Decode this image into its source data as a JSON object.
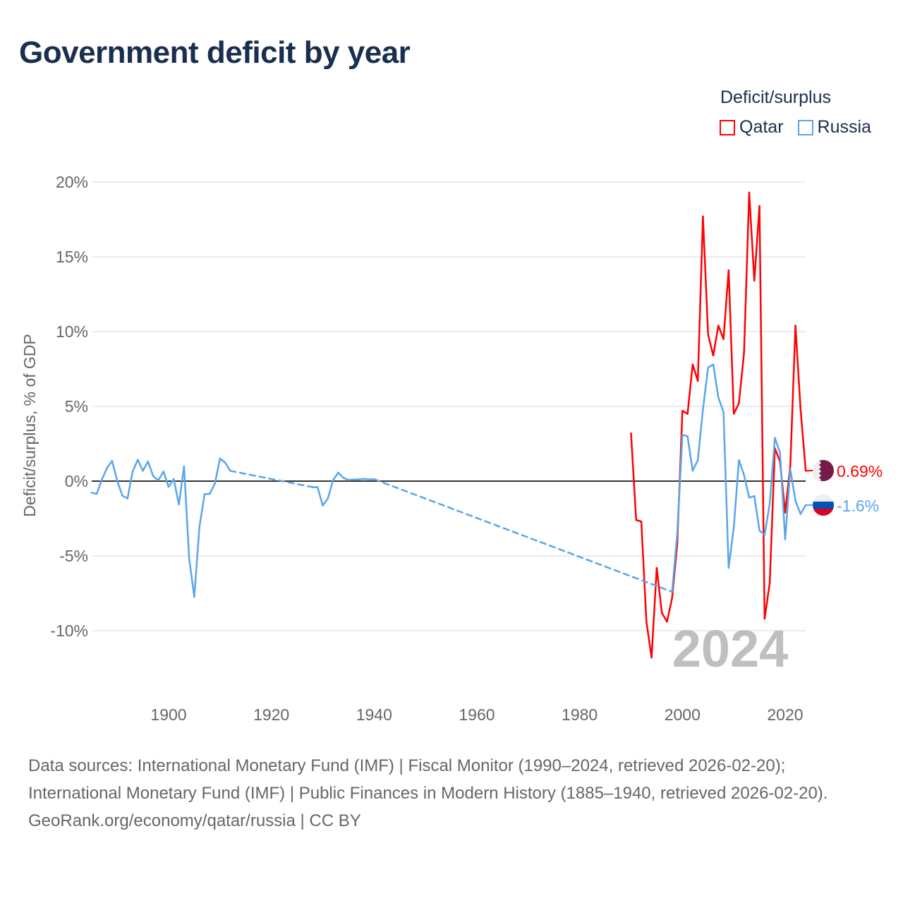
{
  "title": "Government deficit by year",
  "legend": {
    "title": "Deficit/surplus",
    "items": [
      {
        "label": "Qatar",
        "color": "#ff0000"
      },
      {
        "label": "Russia",
        "color": "#5aa5ec"
      }
    ]
  },
  "footer": {
    "sources": "Data sources: International Monetary Fund (IMF) | Fiscal Monitor (1990–2024, retrieved 2026-02-20); International Monetary Fund (IMF) | Public Finances in Modern History (1885–1940, retrieved 2026-02-20).",
    "credit": "GeoRank.org/economy/qatar/russia | CC BY"
  },
  "chart_data": {
    "type": "line",
    "title": "Government deficit by year",
    "ylabel": "Deficit/surplus, % of GDP",
    "xlabel": "",
    "xlim": [
      1885,
      2024
    ],
    "ylim": [
      -13,
      21
    ],
    "yticks": [
      20,
      15,
      10,
      5,
      0,
      -5,
      -10
    ],
    "ytick_labels": [
      "20%",
      "15%",
      "10%",
      "5%",
      "0%",
      "-5%",
      "-10%"
    ],
    "xticks": [
      1900,
      1920,
      1940,
      1960,
      1980,
      2000,
      2020
    ],
    "xtick_labels": [
      "1900",
      "1920",
      "1940",
      "1960",
      "1980",
      "2000",
      "2020"
    ],
    "year_label": "2024",
    "grid": true,
    "legend_position": "top-right",
    "series": [
      {
        "name": "Qatar",
        "color": "#ff0000",
        "end_label": "0.69%",
        "x": [
          1990,
          1991,
          1992,
          1993,
          1994,
          1995,
          1996,
          1997,
          1998,
          1999,
          2000,
          2001,
          2002,
          2003,
          2004,
          2005,
          2006,
          2007,
          2008,
          2009,
          2010,
          2011,
          2012,
          2013,
          2014,
          2015,
          2016,
          2017,
          2018,
          2019,
          2020,
          2021,
          2022,
          2023,
          2024
        ],
        "y": [
          3.2,
          -2.6,
          -2.7,
          -9.4,
          -11.8,
          -5.8,
          -8.8,
          -9.4,
          -7.8,
          -4.2,
          4.7,
          4.5,
          7.8,
          6.7,
          17.7,
          9.8,
          8.4,
          10.4,
          9.5,
          14.1,
          4.5,
          5.2,
          8.6,
          19.3,
          13.4,
          18.4,
          -9.2,
          -6.8,
          2.2,
          1.3,
          -2.1,
          1.0,
          10.4,
          4.8,
          0.69
        ]
      },
      {
        "name": "Russia",
        "color": "#5aa5ec",
        "end_label": "-1.6%",
        "x": [
          1885,
          1886,
          1887,
          1888,
          1889,
          1890,
          1891,
          1892,
          1893,
          1894,
          1895,
          1896,
          1897,
          1898,
          1899,
          1900,
          1901,
          1902,
          1903,
          1904,
          1905,
          1906,
          1907,
          1908,
          1909,
          1910,
          1911,
          1912,
          1928,
          1929,
          1930,
          1931,
          1932,
          1933,
          1934,
          1935,
          1936,
          1937,
          1938,
          1939,
          1940,
          1998,
          1999,
          2000,
          2001,
          2002,
          2003,
          2004,
          2005,
          2006,
          2007,
          2008,
          2009,
          2010,
          2011,
          2012,
          2013,
          2014,
          2015,
          2016,
          2017,
          2018,
          2019,
          2020,
          2021,
          2022,
          2023,
          2024
        ],
        "y": [
          -0.77,
          -0.85,
          0.09,
          0.88,
          1.35,
          0.02,
          -0.97,
          -1.16,
          0.64,
          1.43,
          0.69,
          1.31,
          0.33,
          0.06,
          0.64,
          -0.38,
          0.14,
          -1.56,
          0.99,
          -5.17,
          -7.74,
          -3.05,
          -0.88,
          -0.85,
          -0.17,
          1.51,
          1.24,
          0.69,
          -0.4,
          -0.41,
          -1.63,
          -1.16,
          0.05,
          0.57,
          0.22,
          0.08,
          0.1,
          0.12,
          0.15,
          0.12,
          0.13,
          -7.4,
          -3.5,
          3.1,
          3.0,
          0.7,
          1.4,
          4.8,
          7.6,
          7.8,
          5.6,
          4.6,
          -5.8,
          -3.1,
          1.4,
          0.4,
          -1.1,
          -1.0,
          -3.3,
          -3.6,
          -1.5,
          2.9,
          1.9,
          -3.9,
          0.8,
          -1.3,
          -2.2,
          -1.6
        ]
      }
    ]
  }
}
